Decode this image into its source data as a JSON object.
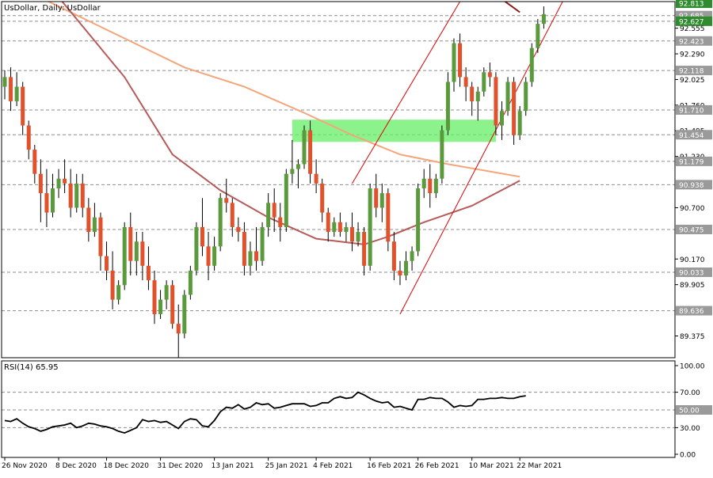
{
  "chart_data": {
    "type": "candlestick",
    "symbol_header": "UsDollar, Daily:  UsDollar",
    "price_axis": {
      "range": [
        89.15,
        92.83
      ],
      "ticks": [
        "92.555",
        "92.290",
        "92.025",
        "91.760",
        "91.495",
        "91.230",
        "90.700",
        "90.170",
        "89.905",
        "89.375"
      ],
      "levels": [
        {
          "label": "92.813",
          "value": 92.813,
          "color": "#2e8b2e",
          "line": false
        },
        {
          "label": "92.685",
          "value": 92.685,
          "color": "#9a9a9a",
          "line": true
        },
        {
          "label": "92.627",
          "value": 92.627,
          "color": "#2e8b2e",
          "line": true
        },
        {
          "label": "92.423",
          "value": 92.423,
          "color": "#9a9a9a",
          "line": true
        },
        {
          "label": "92.118",
          "value": 92.118,
          "color": "#9a9a9a",
          "line": true
        },
        {
          "label": "91.710",
          "value": 91.71,
          "color": "#9a9a9a",
          "line": true
        },
        {
          "label": "91.454",
          "value": 91.454,
          "color": "#9a9a9a",
          "line": true
        },
        {
          "label": "91.179",
          "value": 91.179,
          "color": "#9a9a9a",
          "line": true
        },
        {
          "label": "90.938",
          "value": 90.938,
          "color": "#9a9a9a",
          "line": true
        },
        {
          "label": "90.475",
          "value": 90.475,
          "color": "#9a9a9a",
          "line": true
        },
        {
          "label": "90.033",
          "value": 90.033,
          "color": "#9a9a9a",
          "line": true
        },
        {
          "label": "89.636",
          "value": 89.636,
          "color": "#9a9a9a",
          "line": true
        }
      ]
    },
    "x_axis_labels": [
      "26 Nov 2020",
      "8 Dec 2020",
      "18 Dec 2020",
      "31 Dec 2020",
      "13 Jan 2021",
      "25 Jan 2021",
      "4 Feb 2021",
      "16 Feb 2021",
      "26 Feb 2021",
      "10 Mar 2021",
      "22 Mar 2021"
    ],
    "x_axis_label_bars": [
      0,
      9,
      17,
      26,
      35,
      44,
      52,
      61,
      69,
      78,
      86
    ],
    "candles": [
      [
        91.95,
        92.12,
        91.82,
        92.05
      ],
      [
        92.05,
        92.15,
        91.7,
        91.8
      ],
      [
        91.8,
        92.1,
        91.75,
        91.95
      ],
      [
        91.95,
        92.0,
        91.45,
        91.55
      ],
      [
        91.55,
        91.6,
        91.2,
        91.3
      ],
      [
        91.3,
        91.35,
        90.95,
        91.05
      ],
      [
        91.05,
        91.2,
        90.55,
        90.85
      ],
      [
        90.85,
        91.1,
        90.5,
        90.65
      ],
      [
        90.65,
        91.05,
        90.6,
        90.9
      ],
      [
        90.9,
        91.1,
        90.8,
        91.0
      ],
      [
        91.0,
        91.2,
        90.85,
        90.95
      ],
      [
        90.95,
        91.1,
        90.6,
        90.7
      ],
      [
        90.7,
        91.05,
        90.65,
        90.95
      ],
      [
        90.95,
        91.05,
        90.6,
        90.7
      ],
      [
        90.7,
        90.8,
        90.35,
        90.45
      ],
      [
        90.45,
        90.75,
        90.4,
        90.6
      ],
      [
        90.6,
        90.65,
        90.05,
        90.2
      ],
      [
        90.2,
        90.35,
        89.95,
        90.05
      ],
      [
        90.05,
        90.25,
        89.65,
        89.75
      ],
      [
        89.75,
        89.95,
        89.7,
        89.9
      ],
      [
        89.9,
        90.55,
        89.85,
        90.5
      ],
      [
        90.5,
        90.65,
        90.0,
        90.15
      ],
      [
        90.15,
        90.45,
        90.0,
        90.35
      ],
      [
        90.35,
        90.45,
        89.95,
        90.1
      ],
      [
        90.1,
        90.3,
        89.85,
        89.95
      ],
      [
        89.95,
        90.05,
        89.5,
        89.6
      ],
      [
        89.6,
        89.85,
        89.55,
        89.75
      ],
      [
        89.75,
        89.95,
        89.65,
        89.9
      ],
      [
        89.9,
        89.95,
        89.45,
        89.5
      ],
      [
        89.5,
        89.7,
        89.1,
        89.4
      ],
      [
        89.4,
        89.85,
        89.35,
        89.8
      ],
      [
        89.8,
        90.1,
        89.75,
        90.05
      ],
      [
        90.05,
        90.55,
        90.0,
        90.5
      ],
      [
        90.5,
        90.8,
        90.2,
        90.3
      ],
      [
        90.3,
        90.45,
        89.95,
        90.1
      ],
      [
        90.1,
        90.4,
        90.05,
        90.3
      ],
      [
        90.3,
        90.85,
        90.25,
        90.8
      ],
      [
        90.8,
        91.0,
        90.65,
        90.75
      ],
      [
        90.75,
        90.8,
        90.4,
        90.5
      ],
      [
        90.5,
        90.6,
        90.35,
        90.45
      ],
      [
        90.45,
        90.55,
        90.0,
        90.1
      ],
      [
        90.1,
        90.35,
        90.0,
        90.25
      ],
      [
        90.25,
        90.5,
        90.05,
        90.15
      ],
      [
        90.15,
        90.55,
        90.1,
        90.5
      ],
      [
        90.5,
        90.85,
        90.4,
        90.75
      ],
      [
        90.75,
        90.9,
        90.45,
        90.6
      ],
      [
        90.6,
        90.75,
        90.35,
        90.5
      ],
      [
        90.5,
        91.1,
        90.45,
        91.05
      ],
      [
        91.05,
        91.4,
        90.95,
        91.1
      ],
      [
        91.1,
        91.2,
        90.9,
        91.15
      ],
      [
        91.15,
        91.55,
        91.1,
        91.5
      ],
      [
        91.5,
        91.6,
        90.95,
        91.05
      ],
      [
        91.05,
        91.2,
        90.85,
        90.95
      ],
      [
        90.95,
        91.0,
        90.55,
        90.65
      ],
      [
        90.65,
        90.7,
        90.35,
        90.45
      ],
      [
        90.45,
        90.6,
        90.4,
        90.55
      ],
      [
        90.55,
        90.65,
        90.4,
        90.45
      ],
      [
        90.45,
        90.55,
        90.35,
        90.5
      ],
      [
        90.5,
        90.65,
        90.25,
        90.35
      ],
      [
        90.35,
        90.55,
        90.3,
        90.45
      ],
      [
        90.45,
        90.5,
        90.0,
        90.1
      ],
      [
        90.1,
        90.95,
        90.05,
        90.9
      ],
      [
        90.9,
        91.05,
        90.6,
        90.7
      ],
      [
        90.7,
        90.95,
        90.55,
        90.85
      ],
      [
        90.85,
        90.9,
        90.25,
        90.35
      ],
      [
        90.35,
        90.45,
        89.95,
        90.05
      ],
      [
        90.05,
        90.15,
        89.9,
        90.0
      ],
      [
        90.0,
        90.25,
        89.95,
        90.15
      ],
      [
        90.15,
        90.3,
        90.05,
        90.25
      ],
      [
        90.25,
        90.95,
        90.2,
        90.9
      ],
      [
        90.9,
        91.1,
        90.8,
        91.0
      ],
      [
        91.0,
        91.15,
        90.7,
        90.85
      ],
      [
        90.85,
        91.05,
        90.8,
        91.0
      ],
      [
        91.0,
        91.55,
        90.95,
        91.5
      ],
      [
        91.5,
        92.1,
        91.45,
        92.0
      ],
      [
        92.0,
        92.45,
        91.9,
        92.4
      ],
      [
        92.4,
        92.5,
        91.95,
        92.05
      ],
      [
        92.05,
        92.15,
        91.8,
        91.95
      ],
      [
        91.95,
        92.0,
        91.65,
        91.8
      ],
      [
        91.8,
        91.95,
        91.6,
        91.9
      ],
      [
        91.9,
        92.15,
        91.85,
        92.1
      ],
      [
        92.1,
        92.2,
        91.95,
        92.05
      ],
      [
        92.05,
        92.1,
        91.45,
        91.55
      ],
      [
        91.55,
        91.8,
        91.4,
        91.7
      ],
      [
        91.7,
        92.05,
        91.65,
        92.0
      ],
      [
        92.0,
        92.05,
        91.35,
        91.45
      ],
      [
        91.45,
        91.75,
        91.4,
        91.7
      ],
      [
        91.7,
        92.05,
        91.65,
        92.0
      ],
      [
        92.0,
        92.4,
        91.95,
        92.35
      ],
      [
        92.35,
        92.65,
        92.3,
        92.6
      ],
      [
        92.6,
        92.78,
        92.55,
        92.7
      ]
    ],
    "ma_slow": {
      "color": "#f4a57a",
      "values": [
        [
          0,
          93.05
        ],
        [
          10,
          92.75
        ],
        [
          20,
          92.45
        ],
        [
          30,
          92.15
        ],
        [
          40,
          91.95
        ],
        [
          50,
          91.68
        ],
        [
          58,
          91.45
        ],
        [
          66,
          91.25
        ],
        [
          74,
          91.15
        ],
        [
          86,
          91.02
        ]
      ]
    },
    "ma_fast": {
      "color": "#b65a5a",
      "values": [
        [
          0,
          93.55
        ],
        [
          10,
          92.8
        ],
        [
          20,
          92.05
        ],
        [
          28,
          91.25
        ],
        [
          36,
          90.88
        ],
        [
          44,
          90.6
        ],
        [
          52,
          90.38
        ],
        [
          60,
          90.32
        ],
        [
          64,
          90.4
        ],
        [
          70,
          90.55
        ],
        [
          78,
          90.72
        ],
        [
          86,
          90.98
        ]
      ]
    },
    "ma_top": {
      "color": "#8b1a1a",
      "values": [
        [
          76,
          93.1
        ],
        [
          82,
          92.9
        ],
        [
          86,
          92.72
        ]
      ]
    },
    "channel": {
      "color": "#dd0000",
      "lines": [
        [
          [
            58,
            90.95
          ],
          [
            76,
            92.83
          ]
        ],
        [
          [
            66,
            89.6
          ],
          [
            95,
            93.05
          ]
        ]
      ]
    },
    "zone": {
      "color": "#66ee66",
      "x_from": 48,
      "x_to": 82,
      "high": 91.61,
      "low": 91.38
    },
    "rsi": {
      "label": "RSI(14) 65.95",
      "range": [
        0,
        100
      ],
      "ticks": [
        "100.00",
        "70.00",
        "30.00",
        "0.00"
      ],
      "level_label": "50.00",
      "levels": [
        70,
        50,
        30
      ],
      "values": [
        38,
        37,
        40,
        35,
        31,
        29,
        26,
        28,
        31,
        32,
        33,
        35,
        30,
        32,
        35,
        34,
        32,
        31,
        29,
        26,
        24,
        27,
        30,
        39,
        37,
        38,
        36,
        37,
        33,
        29,
        37,
        40,
        39,
        32,
        31,
        38,
        48,
        53,
        52,
        56,
        51,
        53,
        58,
        56,
        57,
        52,
        53,
        55,
        57,
        57,
        57,
        54,
        55,
        58,
        58,
        63,
        65,
        63,
        64,
        70,
        67,
        63,
        60,
        58,
        59,
        53,
        54,
        52,
        50,
        62,
        62,
        64,
        63,
        63,
        59,
        53,
        55,
        54,
        55,
        62,
        62,
        63,
        63,
        64,
        63,
        63,
        65,
        66
      ]
    }
  }
}
